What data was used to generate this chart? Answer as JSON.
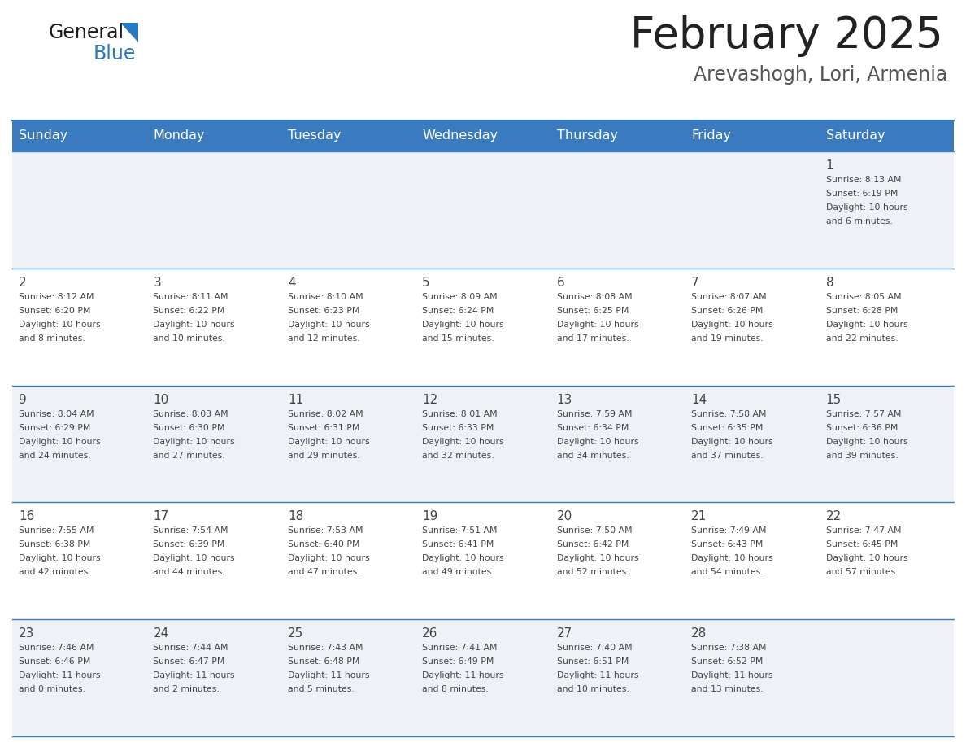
{
  "title": "February 2025",
  "subtitle": "Arevashogh, Lori, Armenia",
  "days_of_week": [
    "Sunday",
    "Monday",
    "Tuesday",
    "Wednesday",
    "Thursday",
    "Friday",
    "Saturday"
  ],
  "header_bg": "#3a7abf",
  "header_text": "#ffffff",
  "cell_bg_odd": "#eef2f7",
  "cell_bg_even": "#ffffff",
  "grid_line_color": "#3a7abf",
  "text_color": "#444444",
  "title_color": "#222222",
  "subtitle_color": "#555555",
  "logo_general_color": "#1a1a1a",
  "logo_blue_color": "#2a7abf",
  "logo_triangle_color": "#2a7abf",
  "calendar_data": [
    [
      null,
      null,
      null,
      null,
      null,
      null,
      {
        "day": 1,
        "sunrise": "8:13 AM",
        "sunset": "6:19 PM",
        "daylight": "10 hours and 6 minutes."
      }
    ],
    [
      {
        "day": 2,
        "sunrise": "8:12 AM",
        "sunset": "6:20 PM",
        "daylight": "10 hours and 8 minutes."
      },
      {
        "day": 3,
        "sunrise": "8:11 AM",
        "sunset": "6:22 PM",
        "daylight": "10 hours and 10 minutes."
      },
      {
        "day": 4,
        "sunrise": "8:10 AM",
        "sunset": "6:23 PM",
        "daylight": "10 hours and 12 minutes."
      },
      {
        "day": 5,
        "sunrise": "8:09 AM",
        "sunset": "6:24 PM",
        "daylight": "10 hours and 15 minutes."
      },
      {
        "day": 6,
        "sunrise": "8:08 AM",
        "sunset": "6:25 PM",
        "daylight": "10 hours and 17 minutes."
      },
      {
        "day": 7,
        "sunrise": "8:07 AM",
        "sunset": "6:26 PM",
        "daylight": "10 hours and 19 minutes."
      },
      {
        "day": 8,
        "sunrise": "8:05 AM",
        "sunset": "6:28 PM",
        "daylight": "10 hours and 22 minutes."
      }
    ],
    [
      {
        "day": 9,
        "sunrise": "8:04 AM",
        "sunset": "6:29 PM",
        "daylight": "10 hours and 24 minutes."
      },
      {
        "day": 10,
        "sunrise": "8:03 AM",
        "sunset": "6:30 PM",
        "daylight": "10 hours and 27 minutes."
      },
      {
        "day": 11,
        "sunrise": "8:02 AM",
        "sunset": "6:31 PM",
        "daylight": "10 hours and 29 minutes."
      },
      {
        "day": 12,
        "sunrise": "8:01 AM",
        "sunset": "6:33 PM",
        "daylight": "10 hours and 32 minutes."
      },
      {
        "day": 13,
        "sunrise": "7:59 AM",
        "sunset": "6:34 PM",
        "daylight": "10 hours and 34 minutes."
      },
      {
        "day": 14,
        "sunrise": "7:58 AM",
        "sunset": "6:35 PM",
        "daylight": "10 hours and 37 minutes."
      },
      {
        "day": 15,
        "sunrise": "7:57 AM",
        "sunset": "6:36 PM",
        "daylight": "10 hours and 39 minutes."
      }
    ],
    [
      {
        "day": 16,
        "sunrise": "7:55 AM",
        "sunset": "6:38 PM",
        "daylight": "10 hours and 42 minutes."
      },
      {
        "day": 17,
        "sunrise": "7:54 AM",
        "sunset": "6:39 PM",
        "daylight": "10 hours and 44 minutes."
      },
      {
        "day": 18,
        "sunrise": "7:53 AM",
        "sunset": "6:40 PM",
        "daylight": "10 hours and 47 minutes."
      },
      {
        "day": 19,
        "sunrise": "7:51 AM",
        "sunset": "6:41 PM",
        "daylight": "10 hours and 49 minutes."
      },
      {
        "day": 20,
        "sunrise": "7:50 AM",
        "sunset": "6:42 PM",
        "daylight": "10 hours and 52 minutes."
      },
      {
        "day": 21,
        "sunrise": "7:49 AM",
        "sunset": "6:43 PM",
        "daylight": "10 hours and 54 minutes."
      },
      {
        "day": 22,
        "sunrise": "7:47 AM",
        "sunset": "6:45 PM",
        "daylight": "10 hours and 57 minutes."
      }
    ],
    [
      {
        "day": 23,
        "sunrise": "7:46 AM",
        "sunset": "6:46 PM",
        "daylight": "11 hours and 0 minutes."
      },
      {
        "day": 24,
        "sunrise": "7:44 AM",
        "sunset": "6:47 PM",
        "daylight": "11 hours and 2 minutes."
      },
      {
        "day": 25,
        "sunrise": "7:43 AM",
        "sunset": "6:48 PM",
        "daylight": "11 hours and 5 minutes."
      },
      {
        "day": 26,
        "sunrise": "7:41 AM",
        "sunset": "6:49 PM",
        "daylight": "11 hours and 8 minutes."
      },
      {
        "day": 27,
        "sunrise": "7:40 AM",
        "sunset": "6:51 PM",
        "daylight": "11 hours and 10 minutes."
      },
      {
        "day": 28,
        "sunrise": "7:38 AM",
        "sunset": "6:52 PM",
        "daylight": "11 hours and 13 minutes."
      },
      null
    ]
  ]
}
